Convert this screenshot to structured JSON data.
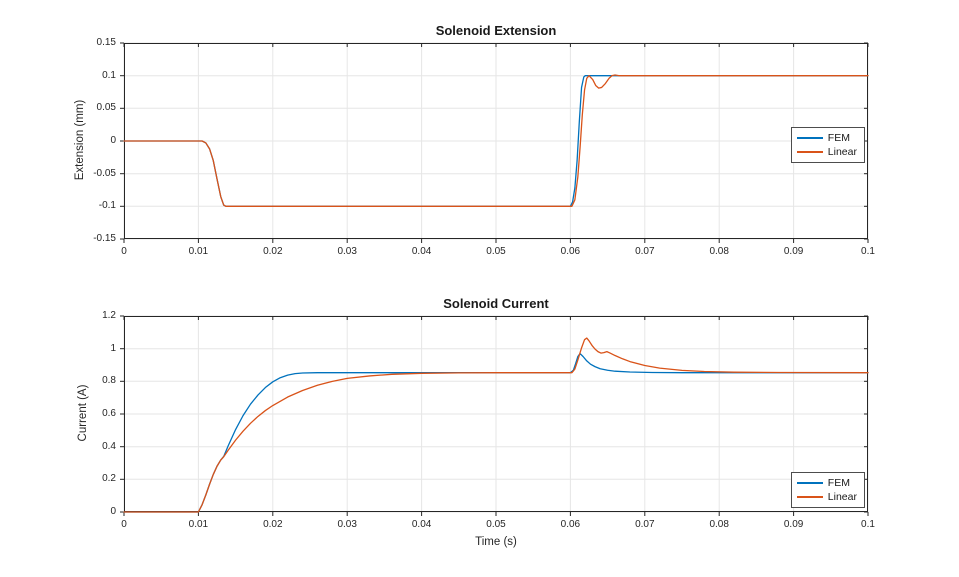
{
  "figure": {
    "background": "#ffffff",
    "accent_blue": "#0072BD",
    "accent_orange": "#D95319"
  },
  "chart_data": [
    {
      "type": "line",
      "title": "Solenoid Extension",
      "xlabel": "",
      "ylabel": "Extension (mm)",
      "xlim": [
        0,
        0.1
      ],
      "ylim": [
        -0.15,
        0.15
      ],
      "grid": true,
      "legend_position": "east",
      "xticks": [
        0,
        0.01,
        0.02,
        0.03,
        0.04,
        0.05,
        0.06,
        0.07,
        0.08,
        0.09,
        0.1
      ],
      "xtick_labels": [
        "0",
        "0.01",
        "0.02",
        "0.03",
        "0.04",
        "0.05",
        "0.06",
        "0.07",
        "0.08",
        "0.09",
        "0.1"
      ],
      "yticks": [
        -0.15,
        -0.1,
        -0.05,
        0,
        0.05,
        0.1,
        0.15
      ],
      "ytick_labels": [
        "-0.15",
        "-0.1",
        "-0.05",
        "0",
        "0.05",
        "0.1",
        "0.15"
      ],
      "series": [
        {
          "name": "FEM",
          "color": "#0072BD",
          "points": [
            [
              0,
              0
            ],
            [
              0.0105,
              0
            ],
            [
              0.011,
              -0.003
            ],
            [
              0.0115,
              -0.012
            ],
            [
              0.012,
              -0.03
            ],
            [
              0.0125,
              -0.058
            ],
            [
              0.013,
              -0.085
            ],
            [
              0.0134,
              -0.098
            ],
            [
              0.0137,
              -0.1
            ],
            [
              0.06,
              -0.1
            ],
            [
              0.0603,
              -0.093
            ],
            [
              0.0606,
              -0.072
            ],
            [
              0.0609,
              -0.03
            ],
            [
              0.0612,
              0.03
            ],
            [
              0.0615,
              0.082
            ],
            [
              0.0618,
              0.098
            ],
            [
              0.062,
              0.1
            ],
            [
              0.1,
              0.1
            ]
          ]
        },
        {
          "name": "Linear",
          "color": "#D95319",
          "points": [
            [
              0,
              0
            ],
            [
              0.0105,
              0
            ],
            [
              0.011,
              -0.003
            ],
            [
              0.0115,
              -0.012
            ],
            [
              0.012,
              -0.03
            ],
            [
              0.0125,
              -0.058
            ],
            [
              0.013,
              -0.085
            ],
            [
              0.0134,
              -0.098
            ],
            [
              0.0137,
              -0.1
            ],
            [
              0.0602,
              -0.1
            ],
            [
              0.0606,
              -0.09
            ],
            [
              0.061,
              -0.055
            ],
            [
              0.0613,
              -0.01
            ],
            [
              0.0616,
              0.04
            ],
            [
              0.0619,
              0.078
            ],
            [
              0.0622,
              0.096
            ],
            [
              0.0625,
              0.1
            ],
            [
              0.063,
              0.094
            ],
            [
              0.0634,
              0.085
            ],
            [
              0.0638,
              0.081
            ],
            [
              0.0642,
              0.082
            ],
            [
              0.0647,
              0.088
            ],
            [
              0.0652,
              0.096
            ],
            [
              0.0656,
              0.1
            ],
            [
              0.066,
              0.101
            ],
            [
              0.0665,
              0.1
            ],
            [
              0.1,
              0.1
            ]
          ]
        }
      ]
    },
    {
      "type": "line",
      "title": "Solenoid Current",
      "xlabel": "Time (s)",
      "ylabel": "Current (A)",
      "xlim": [
        0,
        0.1
      ],
      "ylim": [
        0,
        1.2
      ],
      "grid": true,
      "legend_position": "southeast",
      "xticks": [
        0,
        0.01,
        0.02,
        0.03,
        0.04,
        0.05,
        0.06,
        0.07,
        0.08,
        0.09,
        0.1
      ],
      "xtick_labels": [
        "0",
        "0.01",
        "0.02",
        "0.03",
        "0.04",
        "0.05",
        "0.06",
        "0.07",
        "0.08",
        "0.09",
        "0.1"
      ],
      "yticks": [
        0,
        0.2,
        0.4,
        0.6,
        0.8,
        1,
        1.2
      ],
      "ytick_labels": [
        "0",
        "0.2",
        "0.4",
        "0.6",
        "0.8",
        "1",
        "1.2"
      ],
      "series": [
        {
          "name": "FEM",
          "color": "#0072BD",
          "points": [
            [
              0,
              0
            ],
            [
              0.01,
              0
            ],
            [
              0.0105,
              0.045
            ],
            [
              0.011,
              0.105
            ],
            [
              0.0115,
              0.17
            ],
            [
              0.012,
              0.23
            ],
            [
              0.0125,
              0.28
            ],
            [
              0.013,
              0.318
            ],
            [
              0.0134,
              0.34
            ],
            [
              0.014,
              0.405
            ],
            [
              0.015,
              0.505
            ],
            [
              0.016,
              0.59
            ],
            [
              0.017,
              0.66
            ],
            [
              0.018,
              0.716
            ],
            [
              0.019,
              0.762
            ],
            [
              0.02,
              0.797
            ],
            [
              0.021,
              0.822
            ],
            [
              0.022,
              0.838
            ],
            [
              0.023,
              0.847
            ],
            [
              0.024,
              0.851
            ],
            [
              0.026,
              0.853
            ],
            [
              0.06,
              0.853
            ],
            [
              0.0604,
              0.868
            ],
            [
              0.0607,
              0.908
            ],
            [
              0.061,
              0.952
            ],
            [
              0.0613,
              0.97
            ],
            [
              0.0617,
              0.952
            ],
            [
              0.0622,
              0.925
            ],
            [
              0.0627,
              0.905
            ],
            [
              0.0633,
              0.89
            ],
            [
              0.064,
              0.877
            ],
            [
              0.065,
              0.868
            ],
            [
              0.066,
              0.862
            ],
            [
              0.068,
              0.857
            ],
            [
              0.071,
              0.854
            ],
            [
              0.075,
              0.853
            ],
            [
              0.1,
              0.853
            ]
          ]
        },
        {
          "name": "Linear",
          "color": "#D95319",
          "points": [
            [
              0,
              0
            ],
            [
              0.01,
              0
            ],
            [
              0.0105,
              0.045
            ],
            [
              0.011,
              0.105
            ],
            [
              0.0115,
              0.17
            ],
            [
              0.012,
              0.23
            ],
            [
              0.0125,
              0.28
            ],
            [
              0.013,
              0.318
            ],
            [
              0.0134,
              0.338
            ],
            [
              0.014,
              0.378
            ],
            [
              0.015,
              0.44
            ],
            [
              0.016,
              0.495
            ],
            [
              0.017,
              0.543
            ],
            [
              0.018,
              0.585
            ],
            [
              0.019,
              0.621
            ],
            [
              0.02,
              0.652
            ],
            [
              0.022,
              0.704
            ],
            [
              0.024,
              0.744
            ],
            [
              0.026,
              0.776
            ],
            [
              0.028,
              0.8
            ],
            [
              0.03,
              0.818
            ],
            [
              0.033,
              0.833
            ],
            [
              0.036,
              0.843
            ],
            [
              0.04,
              0.849
            ],
            [
              0.045,
              0.852
            ],
            [
              0.05,
              0.853
            ],
            [
              0.0602,
              0.853
            ],
            [
              0.0606,
              0.875
            ],
            [
              0.061,
              0.93
            ],
            [
              0.0615,
              1.005
            ],
            [
              0.0619,
              1.055
            ],
            [
              0.0622,
              1.065
            ],
            [
              0.0625,
              1.048
            ],
            [
              0.0629,
              1.02
            ],
            [
              0.0633,
              0.998
            ],
            [
              0.0637,
              0.982
            ],
            [
              0.0641,
              0.973
            ],
            [
              0.0645,
              0.976
            ],
            [
              0.0649,
              0.982
            ],
            [
              0.0653,
              0.974
            ],
            [
              0.066,
              0.958
            ],
            [
              0.067,
              0.938
            ],
            [
              0.068,
              0.921
            ],
            [
              0.07,
              0.897
            ],
            [
              0.072,
              0.881
            ],
            [
              0.075,
              0.867
            ],
            [
              0.078,
              0.86
            ],
            [
              0.082,
              0.856
            ],
            [
              0.088,
              0.854
            ],
            [
              0.1,
              0.853
            ]
          ]
        }
      ]
    }
  ],
  "style": {
    "grid_color": "#e6e6e6",
    "spine_color": "#262626",
    "tick_length": 4
  }
}
